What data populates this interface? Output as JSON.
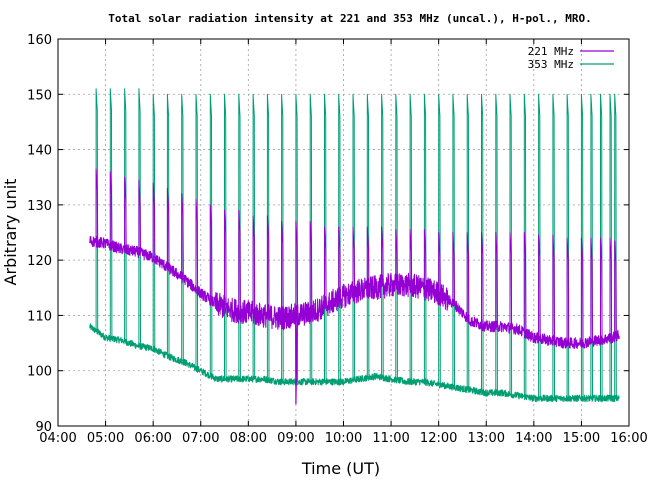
{
  "chart_data": {
    "type": "line",
    "title": "Total solar radiation intensity at 221 and 353 MHz (uncal.), H-pol., MRO.",
    "xlabel": "Time (UT)",
    "ylabel": "Arbitrary unit",
    "xlim": [
      "04:00",
      "16:00"
    ],
    "ylim": [
      90,
      160
    ],
    "xticks": [
      "04:00",
      "05:00",
      "06:00",
      "07:00",
      "08:00",
      "09:00",
      "10:00",
      "11:00",
      "12:00",
      "13:00",
      "14:00",
      "15:00",
      "16:00"
    ],
    "yticks": [
      "90",
      "100",
      "110",
      "120",
      "130",
      "140",
      "150",
      "160"
    ],
    "grid": true,
    "legend_position": "top-right",
    "series": [
      {
        "name": "221 MHz",
        "color": "#9400d3",
        "baseline": [
          [
            "04:40",
            123.5
          ],
          [
            "05:00",
            123.0
          ],
          [
            "05:20",
            122.0
          ],
          [
            "05:40",
            121.5
          ],
          [
            "06:00",
            120.5
          ],
          [
            "06:20",
            118.5
          ],
          [
            "06:40",
            116.5
          ],
          [
            "07:00",
            114.0
          ],
          [
            "07:20",
            112.0
          ],
          [
            "07:40",
            111.0
          ],
          [
            "08:00",
            110.5
          ],
          [
            "08:20",
            110.0
          ],
          [
            "08:40",
            109.5
          ],
          [
            "09:00",
            110.0
          ],
          [
            "09:20",
            110.5
          ],
          [
            "09:40",
            112.0
          ],
          [
            "10:00",
            113.5
          ],
          [
            "10:20",
            114.5
          ],
          [
            "10:40",
            115.0
          ],
          [
            "11:00",
            115.5
          ],
          [
            "11:20",
            115.5
          ],
          [
            "11:40",
            115.0
          ],
          [
            "12:00",
            114.0
          ],
          [
            "12:20",
            112.0
          ],
          [
            "12:40",
            109.0
          ],
          [
            "13:00",
            108.0
          ],
          [
            "13:20",
            108.0
          ],
          [
            "13:40",
            107.5
          ],
          [
            "14:00",
            106.0
          ],
          [
            "14:20",
            105.5
          ],
          [
            "14:40",
            105.0
          ],
          [
            "15:00",
            105.0
          ],
          [
            "15:20",
            105.5
          ],
          [
            "15:40",
            106.0
          ],
          [
            "15:48",
            106.5
          ]
        ],
        "spike_peaks": [
          136.5,
          136,
          135,
          134.5,
          134,
          133,
          132,
          131,
          130,
          129,
          129,
          128,
          128,
          127,
          127,
          127,
          126,
          126,
          126,
          126,
          126,
          125.5,
          125.5,
          125.5,
          125,
          125,
          125,
          125,
          125,
          125,
          125,
          124.5,
          124.5,
          124,
          124,
          124,
          124,
          124,
          123.5
        ],
        "dip_min": [
          "09:00",
          94.0
        ]
      },
      {
        "name": "353 MHz",
        "color": "#009e73",
        "baseline": [
          [
            "04:40",
            108.0
          ],
          [
            "05:00",
            106.0
          ],
          [
            "05:20",
            105.5
          ],
          [
            "05:40",
            104.5
          ],
          [
            "06:00",
            104.0
          ],
          [
            "06:20",
            102.5
          ],
          [
            "06:40",
            101.5
          ],
          [
            "07:00",
            100.0
          ],
          [
            "07:20",
            98.5
          ],
          [
            "07:40",
            98.5
          ],
          [
            "08:00",
            98.5
          ],
          [
            "08:20",
            98.5
          ],
          [
            "08:40",
            98.0
          ],
          [
            "09:00",
            98.0
          ],
          [
            "09:20",
            98.0
          ],
          [
            "09:40",
            98.0
          ],
          [
            "10:00",
            98.0
          ],
          [
            "10:20",
            98.5
          ],
          [
            "10:40",
            99.0
          ],
          [
            "11:00",
            98.5
          ],
          [
            "11:20",
            98.0
          ],
          [
            "11:40",
            98.0
          ],
          [
            "12:00",
            97.5
          ],
          [
            "12:20",
            97.0
          ],
          [
            "12:40",
            96.5
          ],
          [
            "13:00",
            96.0
          ],
          [
            "13:20",
            96.0
          ],
          [
            "13:40",
            95.5
          ],
          [
            "14:00",
            95.0
          ],
          [
            "14:20",
            95.0
          ],
          [
            "14:40",
            95.0
          ],
          [
            "15:00",
            95.0
          ],
          [
            "15:20",
            95.0
          ],
          [
            "15:40",
            95.0
          ],
          [
            "15:48",
            95.0
          ]
        ],
        "spike_peaks": [
          151,
          151,
          151,
          151,
          150,
          150,
          150,
          150,
          150,
          150,
          150,
          150,
          150,
          150,
          150,
          150,
          150,
          150,
          150,
          150,
          150,
          150,
          150,
          150,
          150,
          150,
          150,
          150,
          150,
          150,
          150,
          150,
          150,
          150,
          150,
          150,
          150,
          150,
          150
        ]
      }
    ],
    "spike_times": [
      "04:48",
      "05:06",
      "05:24",
      "05:42",
      "06:00",
      "06:18",
      "06:36",
      "06:54",
      "07:12",
      "07:30",
      "07:48",
      "08:06",
      "08:24",
      "08:42",
      "09:00",
      "09:18",
      "09:36",
      "09:54",
      "10:12",
      "10:30",
      "10:48",
      "11:06",
      "11:24",
      "11:42",
      "12:00",
      "12:18",
      "12:36",
      "12:54",
      "13:12",
      "13:30",
      "13:48",
      "14:06",
      "14:24",
      "14:42",
      "15:00",
      "15:12",
      "15:24",
      "15:36",
      "15:42"
    ]
  }
}
